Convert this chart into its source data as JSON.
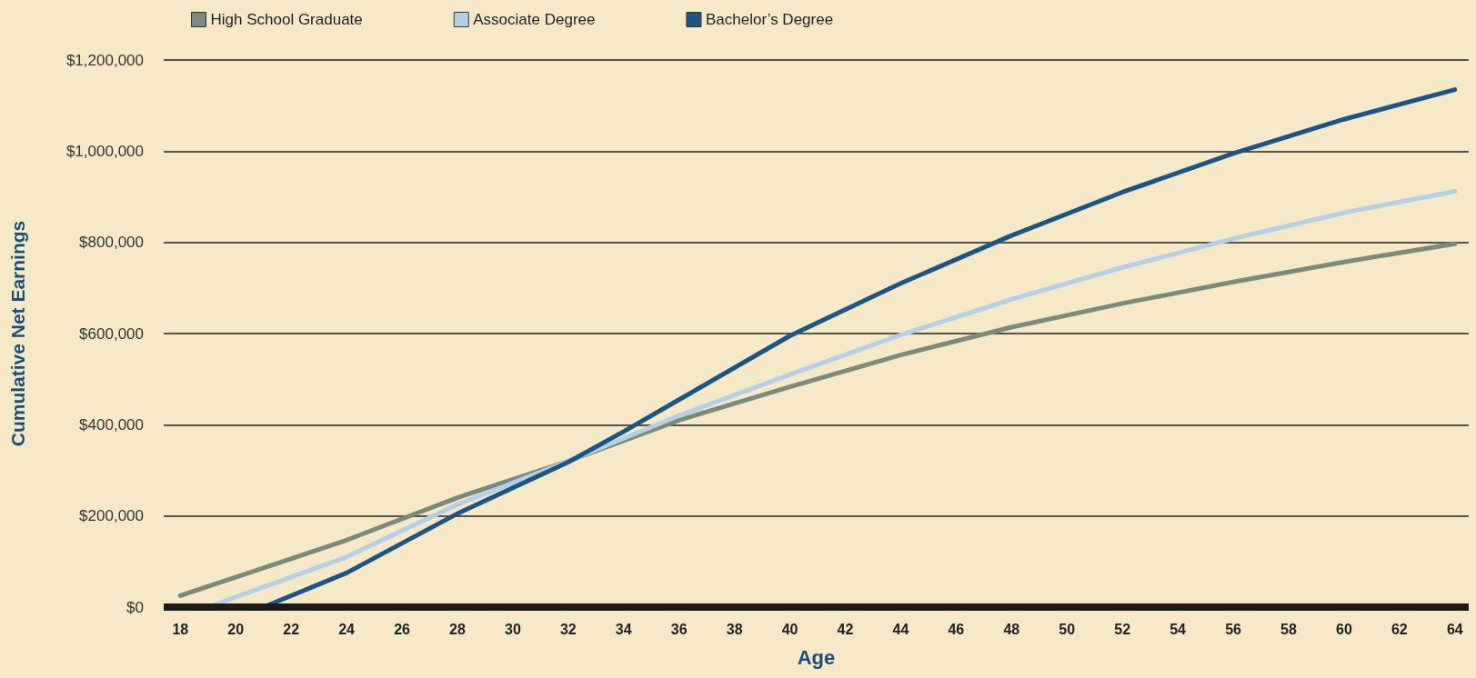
{
  "chart_data": {
    "type": "line",
    "xlabel": "Age",
    "ylabel": "Cumulative Net Earnings",
    "xlim": [
      17.4,
      64.5
    ],
    "xticks": [
      18,
      20,
      22,
      24,
      26,
      28,
      30,
      32,
      34,
      36,
      38,
      40,
      42,
      44,
      46,
      48,
      50,
      52,
      54,
      56,
      58,
      60,
      62,
      64
    ],
    "ylim": [
      0,
      1200000
    ],
    "yticks": [
      {
        "value": 0,
        "label": "$0"
      },
      {
        "value": 200000,
        "label": "$200,000"
      },
      {
        "value": 400000,
        "label": "$400,000"
      },
      {
        "value": 600000,
        "label": "$600,000"
      },
      {
        "value": 800000,
        "label": "$800,000"
      },
      {
        "value": 1000000,
        "label": "$1,000,000"
      },
      {
        "value": 1200000,
        "label": "$1,200,000"
      }
    ],
    "grid": "y",
    "legend": "top left",
    "marker": "none",
    "line_style": "solid",
    "series": [
      {
        "name": "High School Graduate",
        "color": "#7b8a7b",
        "x": [
          18,
          24,
          28,
          32,
          34,
          36,
          40,
          44,
          48,
          52,
          56,
          60,
          64
        ],
        "values": [
          25000,
          147000,
          240000,
          320000,
          365000,
          410000,
          483000,
          553000,
          614000,
          666000,
          713000,
          757000,
          797000
        ]
      },
      {
        "name": "Associate Degree",
        "color": "#b4cfe6",
        "x": [
          18,
          19,
          24,
          28,
          32,
          36,
          40,
          44,
          48,
          52,
          56,
          60,
          64
        ],
        "values": [
          0,
          0,
          110000,
          225000,
          320000,
          420000,
          510000,
          597000,
          675000,
          745000,
          808000,
          865000,
          912000
        ]
      },
      {
        "name": "Bachelor’s Degree",
        "color": "#1a5583",
        "x": [
          18,
          21,
          24,
          28,
          32,
          34,
          36,
          40,
          44,
          48,
          52,
          56,
          60,
          64
        ],
        "values": [
          0,
          0,
          75000,
          205000,
          318000,
          385000,
          455000,
          595000,
          710000,
          815000,
          910000,
          995000,
          1070000,
          1135000
        ]
      }
    ]
  }
}
